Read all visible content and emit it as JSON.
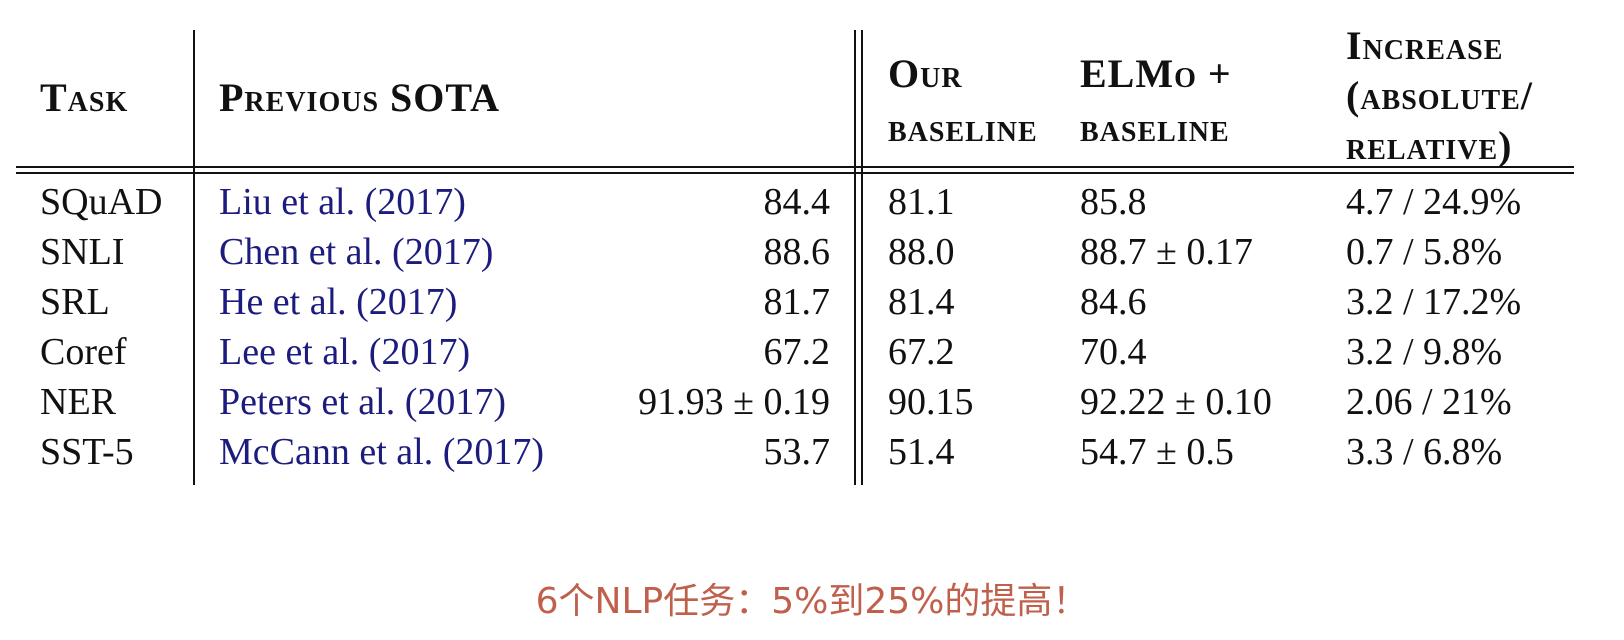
{
  "table": {
    "headers": {
      "task": "Task",
      "previous_sota": "Previous SOTA",
      "our_baseline": [
        "Our",
        "baseline"
      ],
      "elmo_baseline": [
        "ELMo +",
        "baseline"
      ],
      "increase": [
        "Increase",
        "(absolute/",
        "relative)"
      ]
    },
    "rows": [
      {
        "task": "SQuAD",
        "citation": "Liu et al. (2017)",
        "sota": "84.4",
        "our_baseline": "81.1",
        "elmo": "85.8",
        "increase": "4.7 / 24.9%"
      },
      {
        "task": "SNLI",
        "citation": "Chen et al. (2017)",
        "sota": "88.6",
        "our_baseline": "88.0",
        "elmo": "88.7 ± 0.17",
        "increase": "0.7 / 5.8%"
      },
      {
        "task": "SRL",
        "citation": "He et al. (2017)",
        "sota": "81.7",
        "our_baseline": "81.4",
        "elmo": "84.6",
        "increase": "3.2 / 17.2%"
      },
      {
        "task": "Coref",
        "citation": "Lee et al. (2017)",
        "sota": "67.2",
        "our_baseline": "67.2",
        "elmo": "70.4",
        "increase": "3.2 / 9.8%"
      },
      {
        "task": "NER",
        "citation": "Peters et al. (2017)",
        "sota": "91.93 ± 0.19",
        "our_baseline": "90.15",
        "elmo": "92.22 ± 0.10",
        "increase": "2.06 / 21%"
      },
      {
        "task": "SST-5",
        "citation": "McCann et al. (2017)",
        "sota": "53.7",
        "our_baseline": "51.4",
        "elmo": "54.7 ± 0.5",
        "increase": "3.3 / 6.8%"
      }
    ]
  },
  "caption": "6个NLP任务：5%到25%的提高！",
  "colors": {
    "citation": "#1c1c7e",
    "caption": "#c0604c",
    "text": "#111111"
  }
}
